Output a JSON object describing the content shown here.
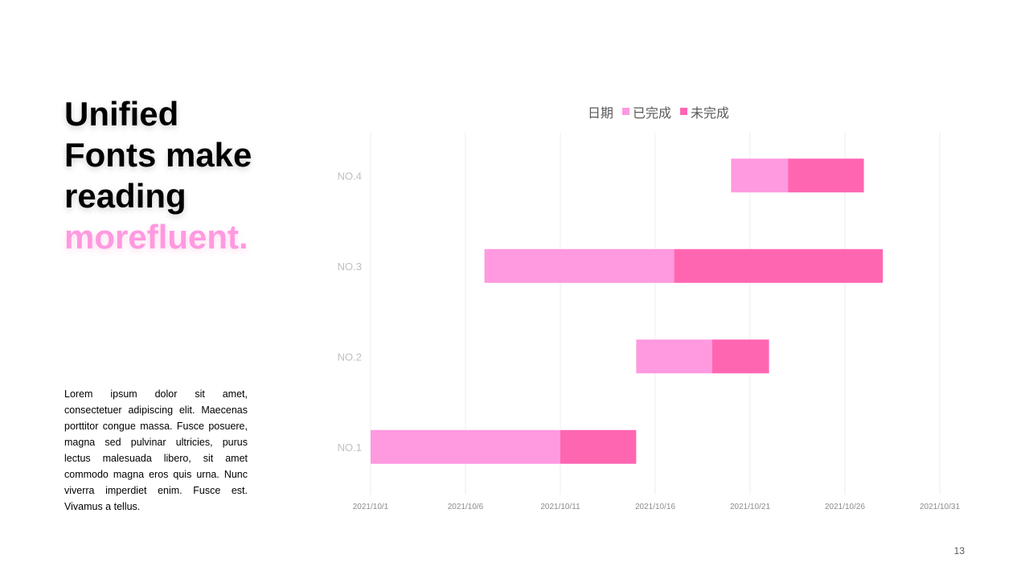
{
  "slide": {
    "headline_lines": [
      "Unified",
      "Fonts make",
      "reading"
    ],
    "headline_accent": "morefluent.",
    "body": "Lorem ipsum dolor sit amet, consectetuer adipiscing elit. Maecenas porttitor congue massa. Fusce posuere, magna sed pulvinar ultricies, purus lectus malesuada libero, sit amet commodo magna eros quis urna. Nunc viverra imperdiet enim. Fusce est. Vivamus a tellus.",
    "page_number": "13"
  },
  "colors": {
    "accent": "#ff99e0",
    "completed": "#ff99e0",
    "remaining": "#ff66b2"
  },
  "chart_data": {
    "type": "bar",
    "orientation": "horizontal",
    "stacked": true,
    "legend_position": "top",
    "legend": [
      "日期",
      "已完成",
      "未完成"
    ],
    "categories": [
      "NO.1",
      "NO.2",
      "NO.3",
      "NO.4"
    ],
    "x_ticks": [
      "2021/10/1",
      "2021/10/6",
      "2021/10/11",
      "2021/10/16",
      "2021/10/21",
      "2021/10/26",
      "2021/10/31"
    ],
    "xlim": [
      "2021/10/1",
      "2021/10/31"
    ],
    "grid": true,
    "series": [
      {
        "name": "日期",
        "values": [
          "2021/10/1",
          "2021/10/15",
          "2021/10/7",
          "2021/10/20"
        ]
      },
      {
        "name": "已完成",
        "values": [
          10,
          4,
          10,
          3
        ]
      },
      {
        "name": "未完成",
        "values": [
          4,
          3,
          11,
          4
        ]
      }
    ]
  }
}
